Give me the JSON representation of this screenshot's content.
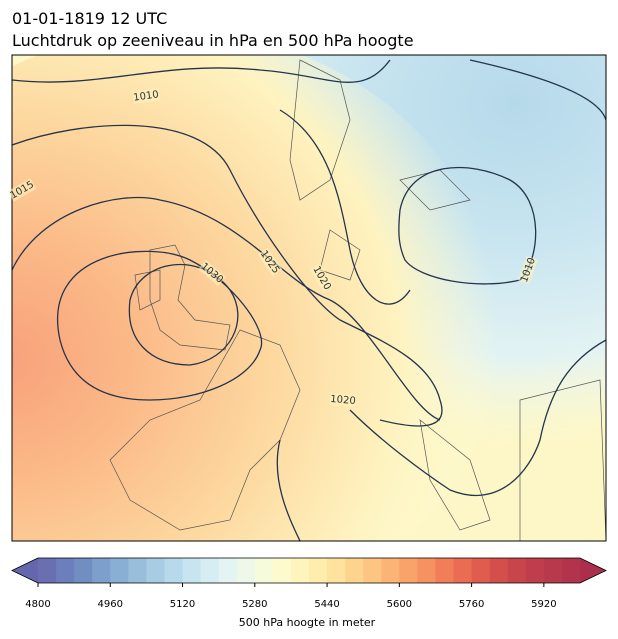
{
  "header": {
    "date": "01-01-1819 12 UTC",
    "title": "Luchtdruk op zeeniveau in hPa en 500 hPa hoogte"
  },
  "map": {
    "contour_labels": [
      1010,
      1015,
      1030,
      1025,
      1020,
      1020,
      1010
    ]
  },
  "colorbar": {
    "label": "500 hPa hoogte in meter",
    "lim": [
      4800,
      6000
    ],
    "ticks": [
      4800,
      4960,
      5120,
      5280,
      5440,
      5600,
      5760,
      5920
    ],
    "under_color": "#6467ad",
    "over_color": "#ab2f4c",
    "colors": [
      "#6a6fb2",
      "#6c7ebb",
      "#718ec3",
      "#7d9fcc",
      "#8aafd4",
      "#98bedc",
      "#a7cce4",
      "#b7d9eb",
      "#c7e4f0",
      "#d6edf3",
      "#e3f4f2",
      "#edf8ea",
      "#f6fbdc",
      "#fdfbcd",
      "#fef5bc",
      "#feedac",
      "#fee29d",
      "#fdd48e",
      "#fcc581",
      "#fbb475",
      "#f9a36a",
      "#f69161",
      "#f17e59",
      "#ea6c52",
      "#e05c4e",
      "#d44f4c",
      "#c9454c",
      "#bf3d4c",
      "#b8384c",
      "#b2344c"
    ]
  }
}
